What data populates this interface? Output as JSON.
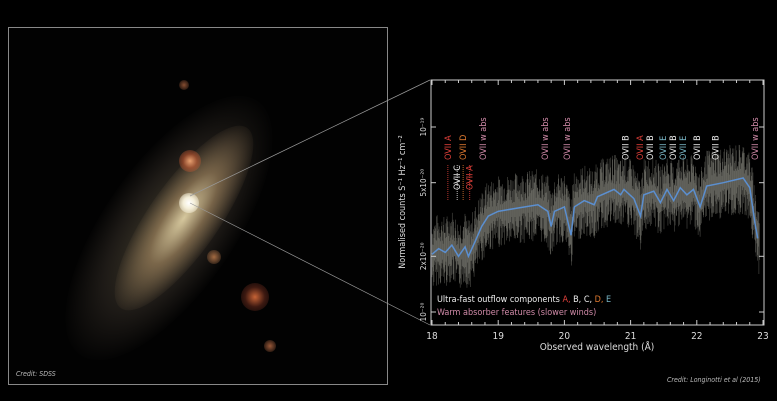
{
  "photo": {
    "credit": "Credit: SDSS"
  },
  "credit": "Credit: Longinotti et al (2015)",
  "chart_data": {
    "type": "line",
    "xlabel": "Observed wavelength (Å)",
    "ylabel": "Normalised counts S⁻¹ Hz⁻¹ cm⁻²",
    "xlim": [
      18,
      23
    ],
    "ylim": [
      1e-20,
      1.8e-19
    ],
    "yscale": "log",
    "x_ticks": [
      "18",
      "19",
      "20",
      "21",
      "22",
      "23"
    ],
    "y_ticks": [
      {
        "v": 1e-19,
        "label": "10⁻¹⁹"
      },
      {
        "v": 5e-20,
        "label": "5x10⁻²⁰"
      },
      {
        "v": 2e-20,
        "label": "2x10⁻²⁰"
      },
      {
        "v": 1e-20,
        "label": "10⁻²⁰"
      }
    ],
    "model_color": "#5b8fd0",
    "model": [
      [
        18.0,
        2.05e-20
      ],
      [
        18.1,
        2.2e-20
      ],
      [
        18.2,
        2.1e-20
      ],
      [
        18.3,
        2.3e-20
      ],
      [
        18.4,
        2e-20
      ],
      [
        18.5,
        2.25e-20
      ],
      [
        18.55,
        2e-20
      ],
      [
        18.65,
        2.4e-20
      ],
      [
        18.75,
        2.9e-20
      ],
      [
        18.85,
        3.3e-20
      ],
      [
        19.0,
        3.5e-20
      ],
      [
        19.3,
        3.65e-20
      ],
      [
        19.6,
        3.8e-20
      ],
      [
        19.75,
        3.5e-20
      ],
      [
        19.8,
        2.9e-20
      ],
      [
        19.85,
        3.5e-20
      ],
      [
        20.0,
        3.7e-20
      ],
      [
        20.1,
        2.6e-20
      ],
      [
        20.15,
        3.7e-20
      ],
      [
        20.3,
        4e-20
      ],
      [
        20.45,
        3.8e-20
      ],
      [
        20.5,
        4.2e-20
      ],
      [
        20.75,
        4.6e-20
      ],
      [
        20.85,
        4.3e-20
      ],
      [
        20.9,
        4.6e-20
      ],
      [
        21.05,
        4.1e-20
      ],
      [
        21.15,
        3.3e-20
      ],
      [
        21.2,
        4.3e-20
      ],
      [
        21.35,
        4.5e-20
      ],
      [
        21.45,
        3.9e-20
      ],
      [
        21.55,
        4.6e-20
      ],
      [
        21.65,
        4e-20
      ],
      [
        21.75,
        4.7e-20
      ],
      [
        21.85,
        4.3e-20
      ],
      [
        21.95,
        4.6e-20
      ],
      [
        22.05,
        3.7e-20
      ],
      [
        22.15,
        4.8e-20
      ],
      [
        22.4,
        5e-20
      ],
      [
        22.7,
        5.3e-20
      ],
      [
        22.8,
        4.7e-20
      ],
      [
        22.88,
        3e-20
      ],
      [
        22.92,
        2.5e-20
      ]
    ],
    "annotations": [
      {
        "x": 18.24,
        "text": "OVII A",
        "color": "#e0403a"
      },
      {
        "x": 18.38,
        "text": "OVII C",
        "color": "#eeeeee"
      },
      {
        "x": 18.47,
        "text": "OVII D",
        "color": "#e07a30"
      },
      {
        "x": 18.57,
        "text": "OVII A",
        "color": "#e0403a"
      },
      {
        "x": 18.77,
        "text": "OVII w abs",
        "color": "#d08aa8"
      },
      {
        "x": 19.71,
        "text": "OVII w abs",
        "color": "#d08aa8"
      },
      {
        "x": 20.04,
        "text": "OVII w abs",
        "color": "#d08aa8"
      },
      {
        "x": 20.92,
        "text": "OVII B",
        "color": "#eeeeee"
      },
      {
        "x": 21.14,
        "text": "OVII A",
        "color": "#e0403a"
      },
      {
        "x": 21.29,
        "text": "OVII B",
        "color": "#eeeeee"
      },
      {
        "x": 21.49,
        "text": "OVII E",
        "color": "#7ab8c8"
      },
      {
        "x": 21.64,
        "text": "OVII B",
        "color": "#eeeeee"
      },
      {
        "x": 21.79,
        "text": "OVII E",
        "color": "#7ab8c8"
      },
      {
        "x": 22.0,
        "text": "OVII B",
        "color": "#eeeeee"
      },
      {
        "x": 22.28,
        "text": "OVII B",
        "color": "#eeeeee"
      },
      {
        "x": 22.88,
        "text": "OVII w abs",
        "color": "#d08aa8"
      }
    ],
    "legend": {
      "line1_prefix": "Ultra-fast outflow components ",
      "components": [
        {
          "text": "A,",
          "color": "#e0403a"
        },
        {
          "text": " B, C,",
          "color": "#eeeeee"
        },
        {
          "text": " D,",
          "color": "#e07a30"
        },
        {
          "text": " E",
          "color": "#7ab8c8"
        }
      ],
      "line2": "Warm absorber features (slower winds)",
      "line2_color": "#d08aa8"
    }
  }
}
